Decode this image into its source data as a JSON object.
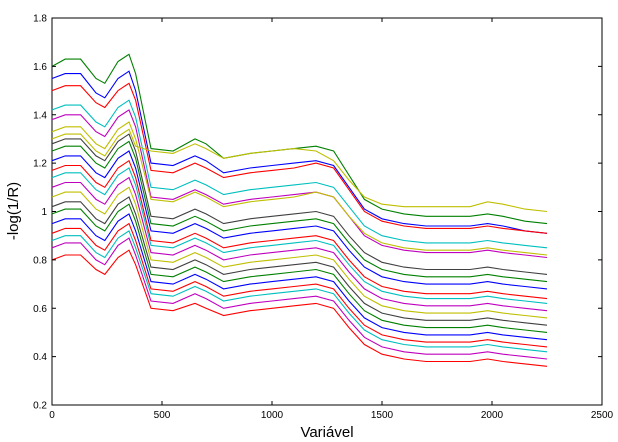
{
  "chart_data": {
    "type": "line",
    "title": "",
    "xlabel": "Variável",
    "ylabel": "-log(1/R)",
    "xlim": [
      0,
      2500
    ],
    "ylim": [
      0.2,
      1.8
    ],
    "xticks": [
      0,
      500,
      1000,
      1500,
      2000,
      2500
    ],
    "yticks": [
      0.2,
      0.4,
      0.6,
      0.8,
      1,
      1.2,
      1.4,
      1.6,
      1.8
    ],
    "xtick_labels": [
      "0",
      "500",
      "1000",
      "1500",
      "2000",
      "2500"
    ],
    "ytick_labels": [
      "0.2",
      "0.4",
      "0.6",
      "0.8",
      "1",
      "1.2",
      "1.4",
      "1.6",
      "1.8"
    ],
    "grid": false,
    "legend": "none",
    "x": [
      0,
      60,
      130,
      200,
      240,
      300,
      350,
      380,
      450,
      550,
      650,
      700,
      780,
      900,
      1000,
      1100,
      1200,
      1280,
      1350,
      1420,
      1500,
      1600,
      1700,
      1800,
      1900,
      1980,
      2050,
      2150,
      2250
    ],
    "series": [
      {
        "color": "#008000",
        "values": [
          1.6,
          1.63,
          1.63,
          1.55,
          1.53,
          1.62,
          1.65,
          1.57,
          1.26,
          1.25,
          1.3,
          1.28,
          1.22,
          1.24,
          1.25,
          1.26,
          1.27,
          1.25,
          1.15,
          1.05,
          1.01,
          0.99,
          0.98,
          0.98,
          0.98,
          0.99,
          0.98,
          0.96,
          0.95
        ]
      },
      {
        "color": "#0000ff",
        "values": [
          1.55,
          1.57,
          1.57,
          1.49,
          1.47,
          1.55,
          1.58,
          1.5,
          1.2,
          1.19,
          1.23,
          1.21,
          1.16,
          1.18,
          1.19,
          1.2,
          1.21,
          1.19,
          1.1,
          1.01,
          0.97,
          0.95,
          0.94,
          0.94,
          0.94,
          0.95,
          0.94,
          0.92,
          0.91
        ]
      },
      {
        "color": "#ff0000",
        "values": [
          1.5,
          1.52,
          1.52,
          1.45,
          1.43,
          1.5,
          1.53,
          1.46,
          1.17,
          1.16,
          1.2,
          1.18,
          1.14,
          1.16,
          1.17,
          1.18,
          1.2,
          1.18,
          1.09,
          1.0,
          0.96,
          0.94,
          0.93,
          0.93,
          0.93,
          0.94,
          0.93,
          0.92,
          0.91
        ]
      },
      {
        "color": "#00bfbf",
        "values": [
          1.42,
          1.44,
          1.44,
          1.37,
          1.35,
          1.43,
          1.46,
          1.39,
          1.1,
          1.09,
          1.13,
          1.11,
          1.07,
          1.09,
          1.1,
          1.11,
          1.12,
          1.1,
          1.02,
          0.94,
          0.9,
          0.88,
          0.87,
          0.87,
          0.87,
          0.88,
          0.87,
          0.86,
          0.85
        ]
      },
      {
        "color": "#bf00bf",
        "values": [
          1.38,
          1.4,
          1.4,
          1.33,
          1.31,
          1.39,
          1.42,
          1.35,
          1.06,
          1.05,
          1.09,
          1.07,
          1.03,
          1.05,
          1.06,
          1.07,
          1.08,
          1.06,
          0.98,
          0.9,
          0.86,
          0.84,
          0.83,
          0.83,
          0.83,
          0.84,
          0.83,
          0.82,
          0.81
        ]
      },
      {
        "color": "#bfbf00",
        "values": [
          1.33,
          1.35,
          1.35,
          1.28,
          1.26,
          1.34,
          1.37,
          1.3,
          1.05,
          1.04,
          1.08,
          1.06,
          1.02,
          1.04,
          1.05,
          1.06,
          1.08,
          1.06,
          0.98,
          0.91,
          0.87,
          0.85,
          0.84,
          0.84,
          0.84,
          0.85,
          0.84,
          0.83,
          0.82
        ]
      },
      {
        "color": "#404040",
        "values": [
          1.28,
          1.3,
          1.3,
          1.23,
          1.21,
          1.29,
          1.32,
          1.25,
          0.98,
          0.97,
          1.01,
          0.99,
          0.95,
          0.97,
          0.98,
          0.99,
          1.0,
          0.98,
          0.9,
          0.83,
          0.79,
          0.77,
          0.76,
          0.76,
          0.76,
          0.77,
          0.76,
          0.75,
          0.74
        ]
      },
      {
        "color": "#008000",
        "values": [
          1.25,
          1.27,
          1.27,
          1.2,
          1.18,
          1.26,
          1.29,
          1.22,
          0.95,
          0.94,
          0.98,
          0.96,
          0.92,
          0.94,
          0.95,
          0.96,
          0.97,
          0.95,
          0.87,
          0.8,
          0.76,
          0.74,
          0.73,
          0.73,
          0.73,
          0.74,
          0.73,
          0.72,
          0.71
        ]
      },
      {
        "color": "#0000ff",
        "values": [
          1.21,
          1.23,
          1.23,
          1.16,
          1.14,
          1.22,
          1.25,
          1.18,
          0.92,
          0.91,
          0.95,
          0.93,
          0.89,
          0.91,
          0.92,
          0.93,
          0.94,
          0.92,
          0.84,
          0.77,
          0.73,
          0.71,
          0.7,
          0.7,
          0.7,
          0.71,
          0.7,
          0.69,
          0.68
        ]
      },
      {
        "color": "#ff0000",
        "values": [
          1.17,
          1.19,
          1.19,
          1.12,
          1.1,
          1.18,
          1.21,
          1.14,
          0.88,
          0.87,
          0.91,
          0.89,
          0.85,
          0.87,
          0.88,
          0.89,
          0.9,
          0.88,
          0.8,
          0.73,
          0.69,
          0.67,
          0.66,
          0.66,
          0.66,
          0.67,
          0.66,
          0.65,
          0.64
        ]
      },
      {
        "color": "#00bfbf",
        "values": [
          1.14,
          1.16,
          1.16,
          1.09,
          1.07,
          1.15,
          1.18,
          1.11,
          0.86,
          0.85,
          0.89,
          0.87,
          0.83,
          0.85,
          0.86,
          0.87,
          0.88,
          0.86,
          0.78,
          0.71,
          0.67,
          0.65,
          0.64,
          0.64,
          0.64,
          0.65,
          0.64,
          0.63,
          0.62
        ]
      },
      {
        "color": "#bf00bf",
        "values": [
          1.1,
          1.12,
          1.12,
          1.05,
          1.03,
          1.11,
          1.14,
          1.07,
          0.83,
          0.82,
          0.86,
          0.84,
          0.8,
          0.82,
          0.83,
          0.84,
          0.85,
          0.83,
          0.75,
          0.68,
          0.64,
          0.62,
          0.61,
          0.61,
          0.61,
          0.62,
          0.61,
          0.6,
          0.59
        ]
      },
      {
        "color": "#bfbf00",
        "values": [
          1.06,
          1.08,
          1.08,
          1.01,
          0.99,
          1.07,
          1.1,
          1.03,
          0.8,
          0.79,
          0.83,
          0.81,
          0.77,
          0.79,
          0.8,
          0.81,
          0.82,
          0.8,
          0.72,
          0.65,
          0.61,
          0.59,
          0.58,
          0.58,
          0.58,
          0.59,
          0.58,
          0.57,
          0.56
        ]
      },
      {
        "color": "#404040",
        "values": [
          1.02,
          1.04,
          1.04,
          0.97,
          0.95,
          1.03,
          1.06,
          0.99,
          0.77,
          0.76,
          0.8,
          0.78,
          0.74,
          0.76,
          0.77,
          0.78,
          0.79,
          0.77,
          0.69,
          0.62,
          0.58,
          0.56,
          0.55,
          0.55,
          0.55,
          0.56,
          0.55,
          0.54,
          0.53
        ]
      },
      {
        "color": "#008000",
        "values": [
          0.99,
          1.01,
          1.01,
          0.94,
          0.92,
          1.0,
          1.03,
          0.96,
          0.74,
          0.73,
          0.77,
          0.75,
          0.71,
          0.73,
          0.74,
          0.75,
          0.76,
          0.74,
          0.66,
          0.59,
          0.55,
          0.53,
          0.52,
          0.52,
          0.52,
          0.53,
          0.52,
          0.51,
          0.5
        ]
      },
      {
        "color": "#0000ff",
        "values": [
          0.95,
          0.97,
          0.97,
          0.9,
          0.88,
          0.96,
          0.99,
          0.92,
          0.71,
          0.7,
          0.74,
          0.72,
          0.68,
          0.7,
          0.71,
          0.72,
          0.73,
          0.71,
          0.63,
          0.56,
          0.52,
          0.5,
          0.49,
          0.49,
          0.49,
          0.5,
          0.49,
          0.48,
          0.47
        ]
      },
      {
        "color": "#ff0000",
        "values": [
          0.91,
          0.93,
          0.93,
          0.86,
          0.84,
          0.92,
          0.95,
          0.88,
          0.68,
          0.67,
          0.71,
          0.69,
          0.65,
          0.67,
          0.68,
          0.69,
          0.7,
          0.68,
          0.6,
          0.53,
          0.49,
          0.47,
          0.46,
          0.46,
          0.46,
          0.47,
          0.46,
          0.45,
          0.44
        ]
      },
      {
        "color": "#00bfbf",
        "values": [
          0.88,
          0.9,
          0.9,
          0.83,
          0.81,
          0.89,
          0.92,
          0.85,
          0.66,
          0.65,
          0.69,
          0.67,
          0.63,
          0.65,
          0.66,
          0.67,
          0.68,
          0.66,
          0.58,
          0.51,
          0.47,
          0.45,
          0.44,
          0.44,
          0.44,
          0.45,
          0.44,
          0.43,
          0.42
        ]
      },
      {
        "color": "#bf00bf",
        "values": [
          0.85,
          0.87,
          0.87,
          0.8,
          0.78,
          0.86,
          0.89,
          0.82,
          0.63,
          0.62,
          0.66,
          0.64,
          0.6,
          0.62,
          0.63,
          0.64,
          0.65,
          0.63,
          0.55,
          0.48,
          0.44,
          0.42,
          0.41,
          0.41,
          0.41,
          0.42,
          0.41,
          0.4,
          0.39
        ]
      },
      {
        "color": "#ff0000",
        "values": [
          0.8,
          0.82,
          0.82,
          0.76,
          0.74,
          0.81,
          0.84,
          0.78,
          0.6,
          0.59,
          0.62,
          0.6,
          0.57,
          0.59,
          0.6,
          0.61,
          0.62,
          0.6,
          0.52,
          0.45,
          0.41,
          0.39,
          0.38,
          0.38,
          0.38,
          0.39,
          0.38,
          0.37,
          0.36
        ]
      },
      {
        "color": "#bfbf00",
        "values": [
          1.3,
          1.32,
          1.32,
          1.25,
          1.23,
          1.31,
          1.34,
          1.27,
          1.25,
          1.24,
          1.28,
          1.26,
          1.22,
          1.24,
          1.25,
          1.26,
          1.25,
          1.21,
          1.13,
          1.06,
          1.03,
          1.02,
          1.02,
          1.02,
          1.02,
          1.04,
          1.03,
          1.01,
          1.0
        ]
      }
    ]
  }
}
